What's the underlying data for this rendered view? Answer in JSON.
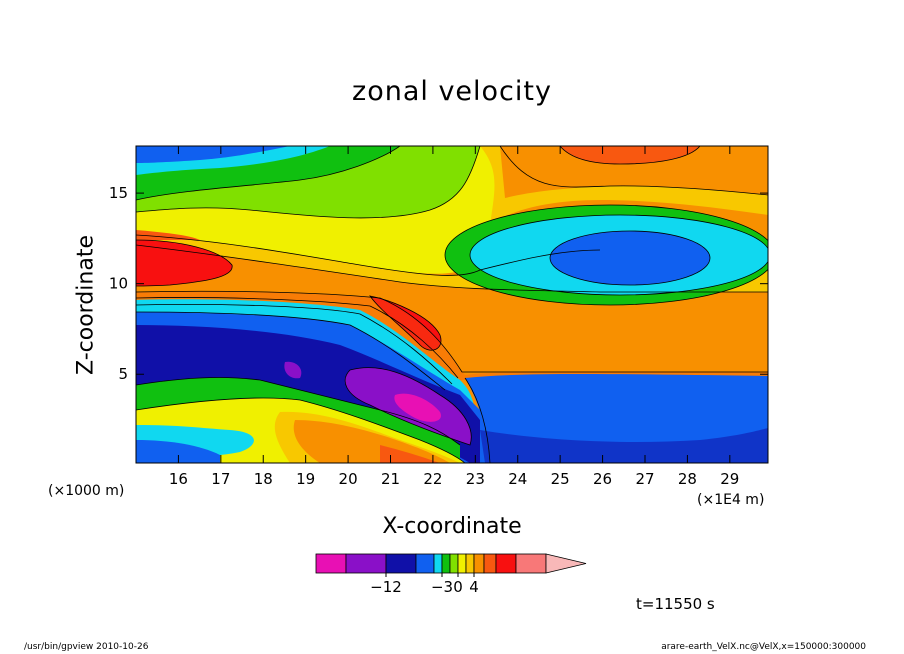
{
  "chart_data": {
    "type": "heatmap",
    "title": "zonal velocity",
    "xlabel": "X-coordinate",
    "ylabel": "Z-coordinate",
    "x_unit_left": "(×1000 m)",
    "x_unit_right": "(×1E4 m)",
    "x_ticks": [
      16,
      17,
      18,
      19,
      20,
      21,
      22,
      23,
      24,
      25,
      26,
      27,
      28,
      29
    ],
    "y_ticks": [
      5,
      10,
      15
    ],
    "xlim": [
      15,
      29.9
    ],
    "ylim": [
      0.1,
      17.6
    ],
    "time_label": "t=11550 s",
    "colorbar": {
      "colors": [
        "#e810b4",
        "#8a10c8",
        "#1010a8",
        "#1060f0",
        "#10d8f0",
        "#10c010",
        "#80e000",
        "#f0f000",
        "#f8c800",
        "#f89000",
        "#f85810",
        "#f81010",
        "#f87878",
        "#f8b8b8"
      ],
      "labels": [
        {
          "text": "−12",
          "index": 1
        },
        {
          "text": "−3",
          "index": 4
        },
        {
          "text": "0",
          "index": 6
        },
        {
          "text": "4",
          "index": 8
        }
      ]
    }
  },
  "footer": {
    "left": "/usr/bin/gpview  2010-10-26",
    "right": "arare-earth_VelX.nc@VelX,x=150000:300000"
  }
}
